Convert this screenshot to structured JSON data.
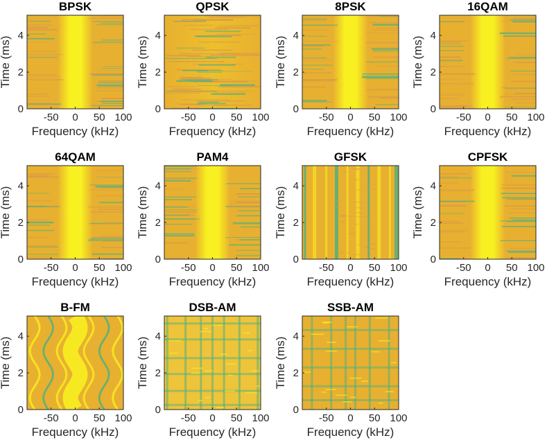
{
  "figure": {
    "xlabel": "Frequency (kHz)",
    "ylabel": "Time (ms)",
    "colors": {
      "yellow": "#f8f020",
      "orange": "#e8b030",
      "green": "#50b080",
      "frame": "#262626"
    }
  },
  "chart_data": [
    {
      "type": "heatmap",
      "title": "BPSK",
      "pattern": "center-vertical",
      "xlabel": "Frequency (kHz)",
      "ylabel": "Time (ms)",
      "xticks": [
        -50,
        0,
        50,
        100
      ],
      "yticks": [
        0,
        2,
        4
      ],
      "xlim": [
        -100,
        100
      ],
      "ylim": [
        0,
        5.1
      ],
      "grid": false
    },
    {
      "type": "heatmap",
      "title": "QPSK",
      "pattern": "horizontal-noise",
      "xlabel": "Frequency (kHz)",
      "ylabel": "Time (ms)",
      "xticks": [
        -50,
        0,
        50,
        100
      ],
      "yticks": [
        0,
        2,
        4
      ],
      "xlim": [
        -100,
        100
      ],
      "ylim": [
        0,
        5.1
      ],
      "grid": false
    },
    {
      "type": "heatmap",
      "title": "8PSK",
      "pattern": "center-vertical",
      "xlabel": "Frequency (kHz)",
      "ylabel": "Time (ms)",
      "xticks": [
        -50,
        0,
        50,
        100
      ],
      "yticks": [
        0,
        2,
        4
      ],
      "xlim": [
        -100,
        100
      ],
      "ylim": [
        0,
        5.1
      ],
      "grid": false
    },
    {
      "type": "heatmap",
      "title": "16QAM",
      "pattern": "center-vertical",
      "xlabel": "Frequency (kHz)",
      "ylabel": "Time (ms)",
      "xticks": [
        -50,
        0,
        50,
        100
      ],
      "yticks": [
        0,
        2,
        4
      ],
      "xlim": [
        -100,
        100
      ],
      "ylim": [
        0,
        5.1
      ],
      "grid": false
    },
    {
      "type": "heatmap",
      "title": "64QAM",
      "pattern": "center-vertical",
      "xlabel": "Frequency (kHz)",
      "ylabel": "Time (ms)",
      "xticks": [
        -50,
        0,
        50,
        100
      ],
      "yticks": [
        0,
        2,
        4
      ],
      "xlim": [
        -100,
        100
      ],
      "ylim": [
        0,
        5.1
      ],
      "grid": false
    },
    {
      "type": "heatmap",
      "title": "PAM4",
      "pattern": "center-vertical",
      "xlabel": "Frequency (kHz)",
      "ylabel": "Time (ms)",
      "xticks": [
        -50,
        0,
        50,
        100
      ],
      "yticks": [
        0,
        2,
        4
      ],
      "xlim": [
        -100,
        100
      ],
      "ylim": [
        0,
        5.1
      ],
      "grid": false
    },
    {
      "type": "heatmap",
      "title": "GFSK",
      "pattern": "vertical-bands",
      "xlabel": "Frequency (kHz)",
      "ylabel": "Time (ms)",
      "xticks": [
        -50,
        0,
        50,
        100
      ],
      "yticks": [
        0,
        2,
        4
      ],
      "xlim": [
        -100,
        100
      ],
      "ylim": [
        0,
        5.1
      ],
      "grid": false
    },
    {
      "type": "heatmap",
      "title": "CPFSK",
      "pattern": "center-vertical",
      "xlabel": "Frequency (kHz)",
      "ylabel": "Time (ms)",
      "xticks": [
        -50,
        0,
        50,
        100
      ],
      "yticks": [
        0,
        2,
        4
      ],
      "xlim": [
        -100,
        100
      ],
      "ylim": [
        0,
        5.1
      ],
      "grid": false
    },
    {
      "type": "heatmap",
      "title": "B-FM",
      "pattern": "wavy",
      "xlabel": "Frequency (kHz)",
      "ylabel": "Time (ms)",
      "xticks": [
        -50,
        0,
        50,
        100
      ],
      "yticks": [
        0,
        2,
        4
      ],
      "xlim": [
        -100,
        100
      ],
      "ylim": [
        0,
        5.1
      ],
      "grid": false
    },
    {
      "type": "heatmap",
      "title": "DSB-AM",
      "pattern": "grid",
      "xlabel": "Frequency (kHz)",
      "ylabel": "Time (ms)",
      "xticks": [
        -50,
        0,
        50,
        100
      ],
      "yticks": [
        0,
        2,
        4
      ],
      "xlim": [
        -100,
        100
      ],
      "ylim": [
        0,
        5.1
      ],
      "grid": false
    },
    {
      "type": "heatmap",
      "title": "SSB-AM",
      "pattern": "grid-sparse",
      "xlabel": "Frequency (kHz)",
      "ylabel": "Time (ms)",
      "xticks": [
        -50,
        0,
        50,
        100
      ],
      "yticks": [
        0,
        2,
        4
      ],
      "xlim": [
        -100,
        100
      ],
      "ylim": [
        0,
        5.1
      ],
      "grid": false
    }
  ]
}
